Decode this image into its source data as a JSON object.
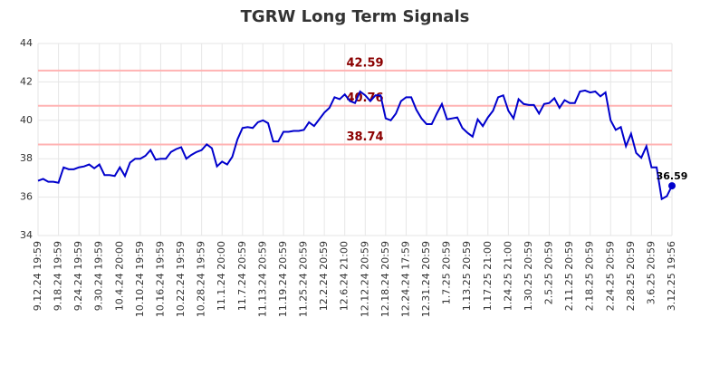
{
  "chart_data": {
    "type": "line",
    "title": "TGRW Long Term Signals",
    "categories": [
      "9.12.24 19:59",
      null,
      null,
      null,
      "9.18.24 19:59",
      null,
      null,
      null,
      "9.24.24 19:59",
      null,
      null,
      null,
      "9.30.24 19:59",
      null,
      null,
      null,
      "10.4.24 20:00",
      null,
      null,
      null,
      "10.10.24 19:59",
      null,
      null,
      null,
      "10.16.24 19:59",
      null,
      null,
      null,
      "10.22.24 19:59",
      null,
      null,
      null,
      "10.28.24 19:59",
      null,
      null,
      null,
      "11.1.24 20:00",
      null,
      null,
      null,
      "11.7.24 20:59",
      null,
      null,
      null,
      "11.13.24 20:59",
      null,
      null,
      null,
      "11.19.24 20:59",
      null,
      null,
      null,
      "11.25.24 20:59",
      null,
      null,
      null,
      "12.2.24 20:59",
      null,
      null,
      null,
      "12.6.24 21:00",
      null,
      null,
      null,
      "12.12.24 20:59",
      null,
      null,
      null,
      "12.18.24 20:59",
      null,
      null,
      null,
      "12.24.24 17:59",
      null,
      null,
      null,
      "12.31.24 20:59",
      null,
      null,
      null,
      "1.7.25 20:59",
      null,
      null,
      null,
      "1.13.25 20:59",
      null,
      null,
      null,
      "1.17.25 21:00",
      null,
      null,
      null,
      "1.24.25 21:00",
      null,
      null,
      null,
      "1.30.25 20:59",
      null,
      null,
      null,
      "2.5.25 20:59",
      null,
      null,
      null,
      "2.11.25 20:59",
      null,
      null,
      null,
      "2.18.25 20:59",
      null,
      null,
      null,
      "2.24.25 20:59",
      null,
      null,
      null,
      "2.28.25 20:59",
      null,
      null,
      null,
      "3.6.25 20:59",
      null,
      null,
      null,
      "3.12.25 19:56"
    ],
    "series": [
      {
        "name": "TGRW",
        "color": "#0000cc",
        "values": [
          36.85,
          36.95,
          36.8,
          36.8,
          36.75,
          37.55,
          37.45,
          37.45,
          37.55,
          37.6,
          37.7,
          37.5,
          37.7,
          37.15,
          37.15,
          37.1,
          37.55,
          37.1,
          37.8,
          38.0,
          38.0,
          38.15,
          38.45,
          37.95,
          38.0,
          38.0,
          38.35,
          38.5,
          38.6,
          38.0,
          38.2,
          38.35,
          38.45,
          38.75,
          38.55,
          37.6,
          37.85,
          37.7,
          38.1,
          39.0,
          39.6,
          39.65,
          39.6,
          39.9,
          40.0,
          39.85,
          38.9,
          38.9,
          39.4,
          39.4,
          39.45,
          39.45,
          39.5,
          39.9,
          39.7,
          40.05,
          40.4,
          40.65,
          41.2,
          41.1,
          41.35,
          41.0,
          40.9,
          41.5,
          41.3,
          41.0,
          41.3,
          41.3,
          40.1,
          40.0,
          40.35,
          41.0,
          41.2,
          41.2,
          40.55,
          40.1,
          39.8,
          39.8,
          40.35,
          40.85,
          40.05,
          40.1,
          40.15,
          39.6,
          39.35,
          39.15,
          40.05,
          39.7,
          40.15,
          40.5,
          41.2,
          41.3,
          40.5,
          40.1,
          41.1,
          40.85,
          40.8,
          40.8,
          40.35,
          40.85,
          40.9,
          41.15,
          40.65,
          41.05,
          40.9,
          40.9,
          41.5,
          41.55,
          41.45,
          41.5,
          41.25,
          41.45,
          40.0,
          39.5,
          39.65,
          38.65,
          39.3,
          38.3,
          38.05,
          38.65,
          37.55,
          37.55,
          35.9,
          36.05,
          36.59
        ]
      }
    ],
    "levels": [
      42.59,
      40.76,
      38.74
    ],
    "level_color": "#ffb3b3",
    "level_label_color": "#8b0000",
    "ylim": [
      34,
      44
    ],
    "yticks": [
      34,
      36,
      38,
      40,
      42,
      44
    ],
    "grid": true
  }
}
